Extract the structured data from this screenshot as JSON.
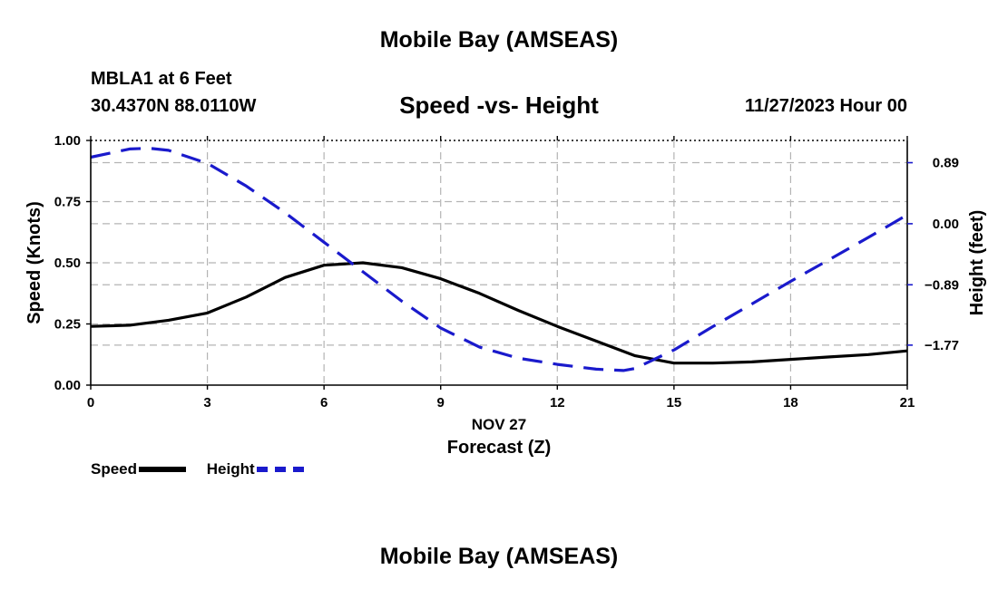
{
  "header": {
    "title": "Mobile Bay (AMSEAS)",
    "station": "MBLA1 at 6 Feet",
    "coords": "30.4370N  88.0110W",
    "subtitle": "Speed -vs- Height",
    "datetime": "11/27/2023 Hour 00"
  },
  "footer": {
    "title": "Mobile Bay (AMSEAS)"
  },
  "legend": {
    "speed_label": "Speed",
    "height_label": "Height"
  },
  "colors": {
    "speed": "#000000",
    "height": "#1a1acc",
    "grid": "#b4b4b4"
  },
  "chart_data": {
    "type": "line",
    "title": "Speed -vs- Height",
    "xlabel": "Forecast (Z)",
    "xsublabel": "NOV 27",
    "ylabel_left": "Speed (Knots)",
    "ylabel_right": "Height (feet)",
    "xlim": [
      0,
      21
    ],
    "xticks": [
      0,
      3,
      6,
      9,
      12,
      15,
      18,
      21
    ],
    "ylim_left": [
      0,
      1
    ],
    "yticks_left": [
      0,
      0.25,
      0.5,
      0.75,
      1.0
    ],
    "yticks_left_labels": [
      "0.00",
      "0.25",
      "0.50",
      "0.75",
      "1.00"
    ],
    "ylim_right": [
      -2.353,
      1.214
    ],
    "yticks_right": [
      -1.77,
      -0.89,
      0.0,
      0.89
    ],
    "yticks_right_labels": [
      "−1.77",
      "−0.89",
      "0.00",
      "0.89"
    ],
    "grid": true,
    "series": [
      {
        "name": "Speed",
        "axis": "left",
        "style": "solid",
        "x": [
          0,
          1,
          2,
          3,
          4,
          5,
          6,
          7,
          8,
          9,
          10,
          11,
          12,
          13,
          14,
          15,
          16,
          17,
          18,
          19,
          20,
          21
        ],
        "values": [
          0.24,
          0.245,
          0.265,
          0.295,
          0.36,
          0.44,
          0.49,
          0.5,
          0.48,
          0.435,
          0.375,
          0.305,
          0.24,
          0.18,
          0.12,
          0.09,
          0.09,
          0.095,
          0.105,
          0.115,
          0.125,
          0.14
        ]
      },
      {
        "name": "Height",
        "axis": "right",
        "style": "dashed",
        "x": [
          0,
          1,
          1.5,
          2,
          3,
          4,
          5,
          6,
          7,
          8,
          9,
          10,
          11,
          12,
          13,
          13.7,
          14,
          15,
          16,
          17,
          18,
          19,
          20,
          21
        ],
        "values": [
          0.97,
          1.09,
          1.1,
          1.07,
          0.88,
          0.55,
          0.16,
          -0.27,
          -0.7,
          -1.13,
          -1.52,
          -1.8,
          -1.96,
          -2.05,
          -2.12,
          -2.14,
          -2.11,
          -1.84,
          -1.5,
          -1.17,
          -0.84,
          -0.52,
          -0.2,
          0.13
        ]
      }
    ]
  }
}
